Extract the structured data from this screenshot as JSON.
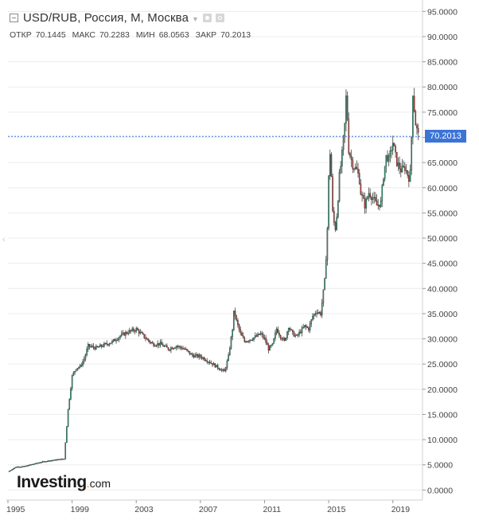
{
  "header": {
    "title": "USD/RUB, Россия, M, Москва",
    "ohlc": {
      "open_label": "ОТКР",
      "open": "70.1445",
      "high_label": "МАКС",
      "high": "70.2283",
      "low_label": "МИН",
      "low": "68.0563",
      "close_label": "ЗАКР",
      "close": "70.2013"
    }
  },
  "logo": {
    "main": "Investing",
    "dot": ".",
    "suffix": "com"
  },
  "last_price_label": "70.2013",
  "colors": {
    "up": "#26a17a",
    "down": "#c0392b",
    "wick": "#444444",
    "badge": "#3b74d6",
    "priceline": "#3b74d6",
    "grid": "#ececec"
  },
  "chart_data": {
    "type": "candlestick",
    "title": "USD/RUB, Россия, M, Москва",
    "ylim": [
      -2,
      96
    ],
    "y_ticks": [
      "0.0000",
      "5.0000",
      "10.0000",
      "15.0000",
      "20.0000",
      "25.0000",
      "30.0000",
      "35.0000",
      "40.0000",
      "45.0000",
      "50.0000",
      "55.0000",
      "60.0000",
      "65.0000",
      "70.0000",
      "75.0000",
      "80.0000",
      "85.0000",
      "90.0000",
      "95.0000"
    ],
    "x_ticks": [
      "1995",
      "1999",
      "2003",
      "2007",
      "2011",
      "2015",
      "2019"
    ],
    "x_range": [
      1995.0,
      2020.8
    ],
    "last_price": 70.2013,
    "series": [
      {
        "t": 1995.0,
        "c": 3.6
      },
      {
        "t": 1995.5,
        "c": 4.6
      },
      {
        "t": 1996.0,
        "c": 4.7
      },
      {
        "t": 1996.5,
        "c": 5.1
      },
      {
        "t": 1997.0,
        "c": 5.5
      },
      {
        "t": 1997.5,
        "c": 5.8
      },
      {
        "t": 1998.0,
        "c": 6.0
      },
      {
        "t": 1998.5,
        "c": 6.2
      },
      {
        "t": 1998.75,
        "c": 16.0
      },
      {
        "t": 1999.0,
        "c": 22.6
      },
      {
        "t": 1999.25,
        "c": 24.2
      },
      {
        "t": 1999.5,
        "c": 24.5
      },
      {
        "t": 1999.75,
        "c": 26.0
      },
      {
        "t": 2000.0,
        "c": 28.6
      },
      {
        "t": 2000.5,
        "c": 28.2
      },
      {
        "t": 2001.0,
        "c": 28.8
      },
      {
        "t": 2001.5,
        "c": 29.4
      },
      {
        "t": 2002.0,
        "c": 30.6
      },
      {
        "t": 2002.5,
        "c": 31.4
      },
      {
        "t": 2003.0,
        "c": 31.9
      },
      {
        "t": 2003.5,
        "c": 30.4
      },
      {
        "t": 2004.0,
        "c": 29.0
      },
      {
        "t": 2004.5,
        "c": 29.0
      },
      {
        "t": 2005.0,
        "c": 28.0
      },
      {
        "t": 2005.5,
        "c": 28.6
      },
      {
        "t": 2006.0,
        "c": 28.0
      },
      {
        "t": 2006.5,
        "c": 26.7
      },
      {
        "t": 2007.0,
        "c": 26.5
      },
      {
        "t": 2007.5,
        "c": 25.6
      },
      {
        "t": 2008.0,
        "c": 24.5
      },
      {
        "t": 2008.5,
        "c": 23.5
      },
      {
        "t": 2008.75,
        "c": 26.5
      },
      {
        "t": 2009.0,
        "c": 32.0
      },
      {
        "t": 2009.1,
        "c": 35.8
      },
      {
        "t": 2009.25,
        "c": 33.5
      },
      {
        "t": 2009.5,
        "c": 31.0
      },
      {
        "t": 2009.75,
        "c": 29.5
      },
      {
        "t": 2010.0,
        "c": 29.8
      },
      {
        "t": 2010.5,
        "c": 30.5
      },
      {
        "t": 2010.75,
        "c": 31.0
      },
      {
        "t": 2011.0,
        "c": 30.0
      },
      {
        "t": 2011.25,
        "c": 28.0
      },
      {
        "t": 2011.5,
        "c": 28.8
      },
      {
        "t": 2011.75,
        "c": 32.0
      },
      {
        "t": 2012.0,
        "c": 30.5
      },
      {
        "t": 2012.25,
        "c": 29.5
      },
      {
        "t": 2012.5,
        "c": 32.5
      },
      {
        "t": 2012.75,
        "c": 31.0
      },
      {
        "t": 2013.0,
        "c": 30.5
      },
      {
        "t": 2013.5,
        "c": 32.5
      },
      {
        "t": 2013.75,
        "c": 32.0
      },
      {
        "t": 2014.0,
        "c": 34.5
      },
      {
        "t": 2014.25,
        "c": 35.5
      },
      {
        "t": 2014.5,
        "c": 35.0
      },
      {
        "t": 2014.75,
        "c": 41.5
      },
      {
        "t": 2014.9,
        "c": 50.0
      },
      {
        "t": 2015.0,
        "c": 62.0
      },
      {
        "t": 2015.1,
        "c": 68.0
      },
      {
        "t": 2015.25,
        "c": 55.0
      },
      {
        "t": 2015.4,
        "c": 51.5
      },
      {
        "t": 2015.55,
        "c": 56.0
      },
      {
        "t": 2015.65,
        "c": 62.0
      },
      {
        "t": 2015.8,
        "c": 65.5
      },
      {
        "t": 2016.0,
        "c": 72.5
      },
      {
        "t": 2016.1,
        "c": 79.0
      },
      {
        "t": 2016.25,
        "c": 67.5
      },
      {
        "t": 2016.5,
        "c": 64.5
      },
      {
        "t": 2016.75,
        "c": 63.5
      },
      {
        "t": 2016.9,
        "c": 62.0
      },
      {
        "t": 2017.0,
        "c": 59.0
      },
      {
        "t": 2017.25,
        "c": 56.5
      },
      {
        "t": 2017.5,
        "c": 59.0
      },
      {
        "t": 2017.75,
        "c": 58.0
      },
      {
        "t": 2018.0,
        "c": 56.5
      },
      {
        "t": 2018.25,
        "c": 57.0
      },
      {
        "t": 2018.4,
        "c": 62.0
      },
      {
        "t": 2018.6,
        "c": 66.5
      },
      {
        "t": 2018.75,
        "c": 65.5
      },
      {
        "t": 2019.0,
        "c": 69.0
      },
      {
        "t": 2019.25,
        "c": 65.0
      },
      {
        "t": 2019.5,
        "c": 63.5
      },
      {
        "t": 2019.75,
        "c": 64.0
      },
      {
        "t": 2020.0,
        "c": 62.0
      },
      {
        "t": 2020.1,
        "c": 63.0
      },
      {
        "t": 2020.25,
        "c": 79.0
      },
      {
        "t": 2020.4,
        "c": 73.0
      },
      {
        "t": 2020.5,
        "c": 71.5
      },
      {
        "t": 2020.6,
        "c": 70.2
      }
    ]
  }
}
